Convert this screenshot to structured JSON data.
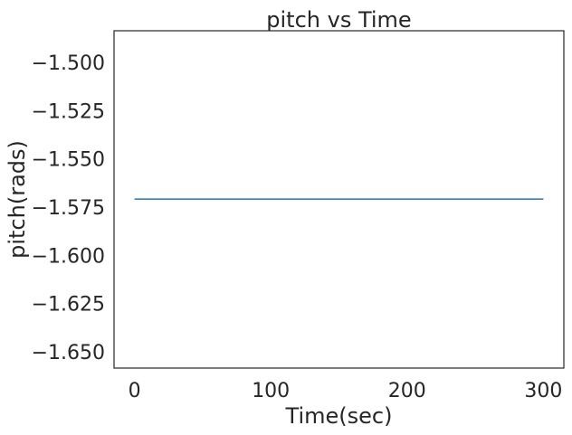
{
  "chart_data": {
    "type": "line",
    "title": "pitch vs Time",
    "xlabel": "Time(sec)",
    "ylabel": "pitch(rads)",
    "xlim": [
      -15,
      315
    ],
    "ylim": [
      -1.6584,
      -1.4836
    ],
    "x_ticks": [
      0,
      100,
      200,
      300
    ],
    "x_tick_labels": [
      "0",
      "100",
      "200",
      "300"
    ],
    "y_ticks": [
      -1.5,
      -1.525,
      -1.55,
      -1.575,
      -1.6,
      -1.625,
      -1.65
    ],
    "y_tick_labels": [
      "−1.500",
      "−1.525",
      "−1.550",
      "−1.575",
      "−1.600",
      "−1.625",
      "−1.650"
    ],
    "grid": false,
    "series": [
      {
        "color": "#1f77b4",
        "x": [
          0,
          300
        ],
        "y": [
          -1.5708,
          -1.5708
        ]
      }
    ]
  }
}
